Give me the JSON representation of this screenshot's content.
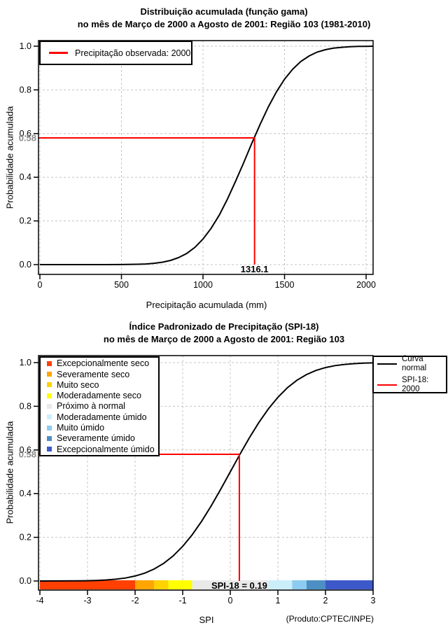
{
  "colors": {
    "curve": "#000000",
    "annotation_line": "#FF0000",
    "grid": "#C4C4C4",
    "probability_label": "#8C8C8C",
    "frame": "#000000"
  },
  "chart_data": [
    {
      "type": "line",
      "title": "Distribuição acumulada (função gama)",
      "subtitle": "no mês de Março de 2000 a Agosto de 2001: Região 103 (1981-2010)",
      "xlabel": "Precipitação acumulada (mm)",
      "ylabel": "Probabilidade acumulada",
      "xlim": [
        0,
        2043
      ],
      "ylim": [
        0,
        1.0
      ],
      "x_ticks": [
        0,
        500,
        1000,
        1500,
        2000
      ],
      "y_ticks": [
        "0.0",
        "0.2",
        "0.4",
        "0.6",
        "0.8",
        "1.0"
      ],
      "grid": true,
      "legend_position": "top-left",
      "legend": [
        {
          "label": "Precipitação observada: 2000",
          "color": "#FF0000"
        }
      ],
      "series": [
        {
          "name": "Distribuição acumulada (função gama)",
          "color": "#000000",
          "x": [
            0,
            100,
            200,
            300,
            400,
            500,
            600,
            650,
            700,
            750,
            800,
            850,
            900,
            950,
            1000,
            1050,
            1100,
            1150,
            1200,
            1250,
            1300,
            1350,
            1400,
            1450,
            1500,
            1550,
            1600,
            1650,
            1700,
            1750,
            1800,
            1850,
            1900,
            1950,
            2000,
            2043
          ],
          "y": [
            0,
            0,
            0,
            0,
            0.0001,
            0.0003,
            0.0015,
            0.003,
            0.006,
            0.011,
            0.019,
            0.032,
            0.051,
            0.079,
            0.117,
            0.166,
            0.227,
            0.3,
            0.382,
            0.468,
            0.557,
            0.642,
            0.721,
            0.791,
            0.849,
            0.895,
            0.93,
            0.955,
            0.973,
            0.984,
            0.991,
            0.995,
            0.9975,
            0.999,
            0.9995,
            1.0
          ]
        }
      ],
      "annotation": {
        "x": 1316.1,
        "y": 0.58,
        "probability": "0.58",
        "value": "1316.1",
        "color": "#FF0000"
      }
    },
    {
      "type": "line",
      "title": "Índice Padronizado de Precipitação (SPI-18)",
      "subtitle": "no mês de Março de 2000 a Agosto de 2001: Região 103",
      "xlabel": "SPI",
      "ylabel": "Probabilidade acumulada",
      "source": "(Produto:CPTEC/INPE)",
      "xlim": [
        -4,
        3
      ],
      "ylim": [
        0,
        1.0
      ],
      "x_ticks": [
        -4,
        -3,
        -2,
        -1,
        0,
        1,
        2,
        3
      ],
      "y_ticks": [
        "0.0",
        "0.2",
        "0.4",
        "0.6",
        "0.8",
        "1.0"
      ],
      "grid": true,
      "legend_categories": [
        {
          "label": "Excepcionalmente seco",
          "color": "#FF4000"
        },
        {
          "label": "Severamente seco",
          "color": "#FFA500"
        },
        {
          "label": "Muito seco",
          "color": "#FFD200"
        },
        {
          "label": "Moderadamente seco",
          "color": "#FFFF00"
        },
        {
          "label": "Próximo à normal",
          "color": "#E9E9E9"
        },
        {
          "label": "Moderadamente úmido",
          "color": "#CBEEFB"
        },
        {
          "label": "Muito úmido",
          "color": "#8CCCF0"
        },
        {
          "label": "Severamente úmido",
          "color": "#4D8FC4"
        },
        {
          "label": "Excepcionalmente úmido",
          "color": "#3D59C9"
        }
      ],
      "legend_lines": [
        {
          "label": "Curva normal",
          "color": "#000000"
        },
        {
          "label": "SPI-18: 2000",
          "color": "#FF0000"
        }
      ],
      "colorbar": [
        {
          "from": -4,
          "to": -2,
          "color": "#FF4000"
        },
        {
          "from": -2,
          "to": -1.6,
          "color": "#FFA500"
        },
        {
          "from": -1.6,
          "to": -1.3,
          "color": "#FFD200"
        },
        {
          "from": -1.3,
          "to": -0.8,
          "color": "#FFFF00"
        },
        {
          "from": -0.8,
          "to": 0.8,
          "color": "#E9E9E9"
        },
        {
          "from": 0.8,
          "to": 1.3,
          "color": "#CBEEFB"
        },
        {
          "from": 1.3,
          "to": 1.6,
          "color": "#8CCCF0"
        },
        {
          "from": 1.6,
          "to": 2,
          "color": "#4D8FC4"
        },
        {
          "from": 2,
          "to": 3,
          "color": "#3D59C9"
        }
      ],
      "series": [
        {
          "name": "Curva normal",
          "color": "#000000",
          "x": [
            -4,
            -3.6,
            -3.2,
            -3,
            -2.8,
            -2.6,
            -2.4,
            -2.2,
            -2,
            -1.8,
            -1.6,
            -1.4,
            -1.2,
            -1,
            -0.8,
            -0.6,
            -0.4,
            -0.2,
            0,
            0.2,
            0.4,
            0.6,
            0.8,
            1,
            1.2,
            1.4,
            1.6,
            1.8,
            2,
            2.2,
            2.4,
            2.6,
            2.8,
            3
          ],
          "y": [
            0,
            0.0002,
            0.0007,
            0.0013,
            0.0026,
            0.0047,
            0.0082,
            0.0139,
            0.0228,
            0.0359,
            0.0548,
            0.0808,
            0.1151,
            0.1587,
            0.2119,
            0.2743,
            0.3446,
            0.4207,
            0.5,
            0.5793,
            0.6554,
            0.7257,
            0.7881,
            0.8413,
            0.8849,
            0.9192,
            0.9452,
            0.9641,
            0.9772,
            0.9861,
            0.9918,
            0.9953,
            0.9974,
            0.9987
          ]
        }
      ],
      "annotation": {
        "x": 0.19,
        "y": 0.58,
        "probability": "0.58",
        "label": "SPI-18 = 0.19",
        "color": "#FF0000"
      }
    }
  ]
}
